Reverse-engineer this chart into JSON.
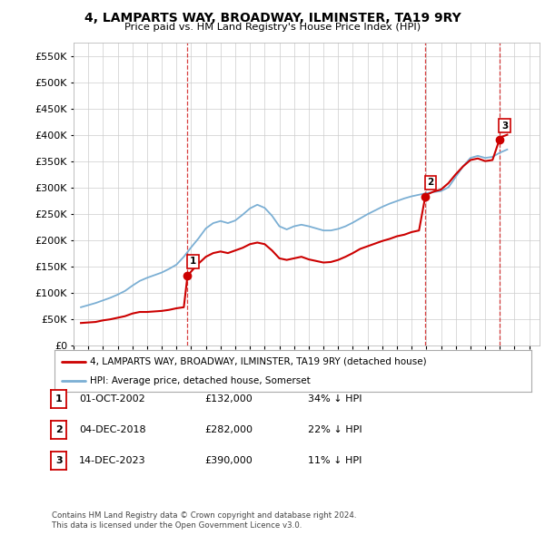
{
  "title": "4, LAMPARTS WAY, BROADWAY, ILMINSTER, TA19 9RY",
  "subtitle": "Price paid vs. HM Land Registry's House Price Index (HPI)",
  "xlim_start": 1995.3,
  "xlim_end": 2026.7,
  "ylim_min": 0,
  "ylim_max": 575000,
  "background_color": "#ffffff",
  "grid_color": "#cccccc",
  "hpi_color": "#7bafd4",
  "price_color": "#cc0000",
  "vline_color": "#cc0000",
  "sale_points": [
    {
      "year": 2002.75,
      "price": 132000,
      "label": "1"
    },
    {
      "year": 2018.92,
      "price": 282000,
      "label": "2"
    },
    {
      "year": 2023.96,
      "price": 390000,
      "label": "3"
    }
  ],
  "table_rows": [
    {
      "label": "1",
      "date": "01-OCT-2002",
      "price": "£132,000",
      "pct": "34% ↓ HPI"
    },
    {
      "label": "2",
      "date": "04-DEC-2018",
      "price": "£282,000",
      "pct": "22% ↓ HPI"
    },
    {
      "label": "3",
      "date": "14-DEC-2023",
      "price": "£390,000",
      "pct": "11% ↓ HPI"
    }
  ],
  "legend_line1": "4, LAMPARTS WAY, BROADWAY, ILMINSTER, TA19 9RY (detached house)",
  "legend_line2": "HPI: Average price, detached house, Somerset",
  "footer1": "Contains HM Land Registry data © Crown copyright and database right 2024.",
  "footer2": "This data is licensed under the Open Government Licence v3.0.",
  "hpi_data": {
    "years": [
      1995.5,
      1996.0,
      1996.5,
      1997.0,
      1997.5,
      1998.0,
      1998.5,
      1999.0,
      1999.5,
      2000.0,
      2000.5,
      2001.0,
      2001.5,
      2002.0,
      2002.5,
      2003.0,
      2003.5,
      2004.0,
      2004.5,
      2005.0,
      2005.5,
      2006.0,
      2006.5,
      2007.0,
      2007.5,
      2008.0,
      2008.5,
      2009.0,
      2009.5,
      2010.0,
      2010.5,
      2011.0,
      2011.5,
      2012.0,
      2012.5,
      2013.0,
      2013.5,
      2014.0,
      2014.5,
      2015.0,
      2015.5,
      2016.0,
      2016.5,
      2017.0,
      2017.5,
      2018.0,
      2018.5,
      2019.0,
      2019.5,
      2020.0,
      2020.5,
      2021.0,
      2021.5,
      2022.0,
      2022.5,
      2023.0,
      2023.5,
      2024.0,
      2024.5
    ],
    "values": [
      72000,
      76000,
      80000,
      85000,
      90000,
      96000,
      103000,
      113000,
      122000,
      128000,
      133000,
      138000,
      145000,
      153000,
      168000,
      186000,
      203000,
      222000,
      232000,
      236000,
      232000,
      237000,
      248000,
      260000,
      267000,
      261000,
      246000,
      226000,
      220000,
      226000,
      229000,
      226000,
      222000,
      218000,
      218000,
      221000,
      226000,
      233000,
      241000,
      249000,
      256000,
      263000,
      269000,
      274000,
      279000,
      283000,
      286000,
      289000,
      291000,
      293000,
      300000,
      320000,
      340000,
      356000,
      360000,
      356000,
      358000,
      366000,
      372000
    ]
  },
  "price_line_data": {
    "years": [
      1995.5,
      1996.0,
      1996.5,
      1997.0,
      1997.5,
      1998.0,
      1998.5,
      1999.0,
      1999.5,
      2000.0,
      2000.5,
      2001.0,
      2001.5,
      2002.0,
      2002.5,
      2002.75,
      2003.0,
      2003.5,
      2004.0,
      2004.5,
      2005.0,
      2005.5,
      2006.0,
      2006.5,
      2007.0,
      2007.5,
      2008.0,
      2008.5,
      2009.0,
      2009.5,
      2010.0,
      2010.5,
      2011.0,
      2011.5,
      2012.0,
      2012.5,
      2013.0,
      2013.5,
      2014.0,
      2014.5,
      2015.0,
      2015.5,
      2016.0,
      2016.5,
      2017.0,
      2017.5,
      2018.0,
      2018.5,
      2018.92,
      2019.0,
      2019.5,
      2020.0,
      2020.5,
      2021.0,
      2021.5,
      2022.0,
      2022.5,
      2023.0,
      2023.5,
      2023.96,
      2024.0,
      2024.5
    ],
    "values": [
      42000,
      43000,
      44000,
      47000,
      49000,
      52000,
      55000,
      60000,
      63000,
      63000,
      64000,
      65000,
      67000,
      70000,
      72000,
      132000,
      140000,
      155000,
      168000,
      175000,
      178000,
      175000,
      180000,
      185000,
      192000,
      195000,
      192000,
      180000,
      165000,
      162000,
      165000,
      168000,
      163000,
      160000,
      157000,
      158000,
      162000,
      168000,
      175000,
      183000,
      188000,
      193000,
      198000,
      202000,
      207000,
      210000,
      215000,
      218000,
      282000,
      286000,
      292000,
      296000,
      308000,
      325000,
      340000,
      352000,
      355000,
      350000,
      352000,
      390000,
      395000,
      400000
    ]
  }
}
